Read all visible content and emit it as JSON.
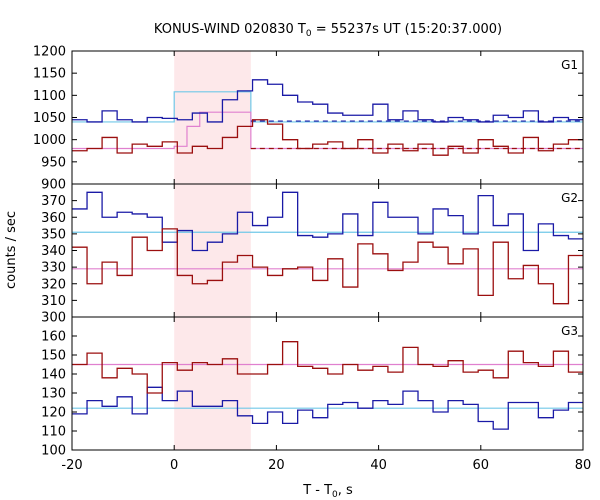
{
  "chart_data": {
    "type": "line",
    "title_prefix": "KONUS-WIND 020830 T",
    "title_sub": "0",
    "title_suffix": " = 55237s UT (15:20:37.000)",
    "xlabel_prefix": "T - T",
    "xlabel_sub": "0",
    "xlabel_suffix": ", s",
    "ylabel": "counts / sec",
    "xlim": [
      -20,
      80
    ],
    "xticks": [
      -20,
      0,
      20,
      40,
      60,
      80
    ],
    "x_tick_labels": [
      "-20",
      "0",
      "20",
      "40",
      "60",
      "80"
    ],
    "highlight_interval": [
      0,
      15
    ],
    "colors": {
      "blue": "#1a1aa6",
      "red": "#9b0f0f",
      "cyan": "#70c8e8",
      "pink": "#e080cf",
      "highlight": "#fde8ea"
    },
    "panels": [
      {
        "label": "G1",
        "ylim": [
          900,
          1200
        ],
        "yticks": [
          900,
          950,
          1000,
          1050,
          1100,
          1150,
          1200
        ],
        "y_tick_labels": [
          "900",
          "950",
          "1000",
          "1050",
          "1100",
          "1150",
          "1200"
        ],
        "series": [
          {
            "color": "blue",
            "bin_width": 2.944,
            "x_start": -20,
            "values": [
              1045,
              1040,
              1065,
              1045,
              1040,
              1050,
              1048,
              1045,
              1060,
              1040,
              1090,
              1110,
              1135,
              1125,
              1100,
              1085,
              1080,
              1060,
              1055,
              1055,
              1080,
              1045,
              1065,
              1045,
              1040,
              1050,
              1045,
              1040,
              1055,
              1050,
              1065,
              1040,
              1050,
              1045
            ]
          },
          {
            "color": "red",
            "bin_width": 2.944,
            "x_start": -20,
            "values": [
              975,
              980,
              1005,
              970,
              990,
              985,
              995,
              970,
              985,
              980,
              1005,
              1030,
              1045,
              1035,
              1000,
              980,
              990,
              995,
              980,
              1000,
              970,
              990,
              975,
              990,
              965,
              985,
              970,
              1000,
              985,
              970,
              1005,
              975,
              990,
              1000
            ]
          }
        ],
        "bg_lines": [
          {
            "color": "blue",
            "style": "dashed",
            "value": 1042,
            "x_range": [
              15,
              80
            ]
          },
          {
            "color": "red",
            "style": "dashed",
            "value": 980,
            "x_range": [
              15,
              80
            ]
          }
        ],
        "bg_steps": [
          {
            "color": "cyan",
            "x": [
              -20,
              0,
              0,
              15,
              15,
              80
            ],
            "y": [
              1040,
              1040,
              1108,
              1108,
              1040,
              1040
            ]
          },
          {
            "color": "pink",
            "x": [
              -20,
              0,
              0,
              2.5,
              2.5,
              5,
              5,
              15,
              15,
              80
            ],
            "y": [
              980,
              980,
              985,
              985,
              1030,
              1030,
              1062,
              1062,
              980,
              980
            ]
          }
        ]
      },
      {
        "label": "G2",
        "ylim": [
          300,
          380
        ],
        "yticks": [
          300,
          310,
          320,
          330,
          340,
          350,
          360,
          370
        ],
        "y_tick_labels": [
          "300",
          "310",
          "320",
          "330",
          "340",
          "350",
          "360",
          "370"
        ],
        "series": [
          {
            "color": "blue",
            "bin_width": 2.944,
            "x_start": -20,
            "values": [
              365,
              375,
              360,
              363,
              362,
              360,
              345,
              352,
              340,
              345,
              350,
              363,
              355,
              360,
              375,
              349,
              348,
              350,
              362,
              349,
              369,
              360,
              360,
              350,
              365,
              361,
              350,
              373,
              355,
              362,
              340,
              356,
              349,
              347,
              346,
              355,
              356,
              339,
              348
            ]
          },
          {
            "color": "red",
            "bin_width": 2.944,
            "x_start": -20,
            "values": [
              342,
              320,
              333,
              325,
              348,
              340,
              353,
              325,
              320,
              322,
              333,
              337,
              330,
              325,
              329,
              330,
              322,
              335,
              318,
              344,
              338,
              328,
              333,
              345,
              342,
              332,
              341,
              313,
              345,
              323,
              331,
              320,
              308,
              337,
              339,
              320,
              338,
              330,
              339
            ]
          }
        ],
        "bg_lines": [
          {
            "color": "cyan",
            "style": "solid",
            "value": 351,
            "x_range": [
              -20,
              80
            ]
          },
          {
            "color": "pink",
            "style": "solid",
            "value": 329,
            "x_range": [
              -20,
              80
            ]
          }
        ],
        "bg_steps": []
      },
      {
        "label": "G3",
        "ylim": [
          100,
          170
        ],
        "yticks": [
          100,
          110,
          120,
          130,
          140,
          150,
          160
        ],
        "y_tick_labels": [
          "100",
          "110",
          "120",
          "130",
          "140",
          "150",
          "160"
        ],
        "series": [
          {
            "color": "blue",
            "bin_width": 2.944,
            "x_start": -20,
            "values": [
              119,
              126,
              123,
              128,
              119,
              133,
              126,
              131,
              123,
              123,
              126,
              118,
              114,
              120,
              114,
              121,
              117,
              124,
              125,
              122,
              126,
              124,
              131,
              126,
              120,
              126,
              124,
              115,
              111,
              125,
              125,
              117,
              121,
              125,
              126,
              120,
              118,
              125,
              134
            ]
          },
          {
            "color": "red",
            "bin_width": 2.944,
            "x_start": -20,
            "values": [
              145,
              151,
              138,
              143,
              140,
              130,
              146,
              142,
              146,
              145,
              148,
              140,
              140,
              145,
              157,
              144,
              143,
              140,
              145,
              142,
              144,
              141,
              154,
              145,
              144,
              147,
              141,
              142,
              138,
              152,
              146,
              144,
              152,
              141,
              146,
              154,
              150,
              145,
              157
            ]
          }
        ],
        "bg_lines": [
          {
            "color": "pink",
            "style": "solid",
            "value": 145,
            "x_range": [
              -20,
              80
            ]
          },
          {
            "color": "cyan",
            "style": "solid",
            "value": 122,
            "x_range": [
              -20,
              80
            ]
          }
        ],
        "bg_steps": []
      }
    ]
  }
}
